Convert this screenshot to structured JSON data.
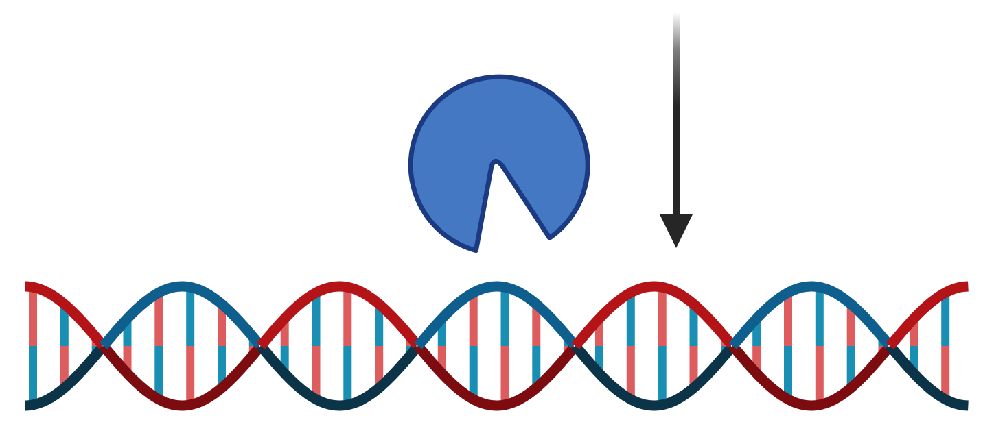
{
  "diagram": {
    "objects": [
      {
        "id": "enzyme",
        "label": "",
        "shape": "pac-man circle with wedge notch"
      },
      {
        "id": "arrow",
        "label": "",
        "direction": "down"
      },
      {
        "id": "dna",
        "label": "",
        "shape": "double helix",
        "turns": 3
      }
    ]
  },
  "colors": {
    "enzyme_fill": "#4478C2",
    "enzyme_outline": "#1B3A82",
    "arrow": "#262626",
    "strand_red": "#B41318",
    "strand_red_dark": "#7C0C10",
    "strand_blue": "#0F5F8E",
    "strand_blue_dark": "#0C3448",
    "base_pink": "#DD5C5E",
    "base_teal": "#1A8FB4",
    "background": "#FFFFFF"
  }
}
